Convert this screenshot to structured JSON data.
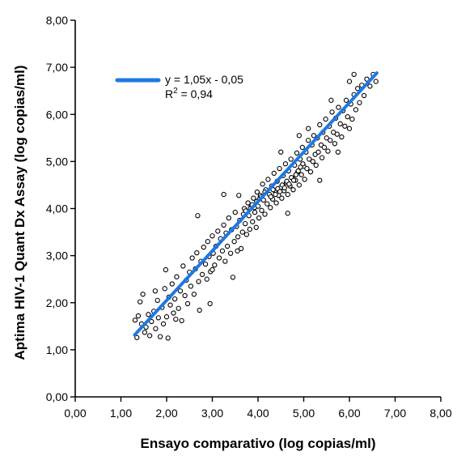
{
  "chart_data": {
    "type": "scatter",
    "xlabel": "Ensayo comparativo (log copias/ml)",
    "ylabel": "Aptima HIV-1 Quant Dx Assay (log copias/ml)",
    "xlim": [
      0,
      8
    ],
    "ylim": [
      0,
      8
    ],
    "x_tick_labels": [
      "0,00",
      "1,00",
      "2,00",
      "3,00",
      "4,00",
      "5,00",
      "6,00",
      "7,00",
      "8,00"
    ],
    "y_tick_labels": [
      "0,00",
      "1,00",
      "2,00",
      "3,00",
      "4,00",
      "5,00",
      "6,00",
      "7,00",
      "8,00"
    ],
    "grid": false,
    "legend_position": "top-left",
    "regression": {
      "equation": "y = 1,05x - 0,05",
      "r2_prefix": "R",
      "r2_sup": "2",
      "r2_suffix": " = 0,94",
      "slope": 1.05,
      "intercept": -0.05,
      "x_range": [
        1.3,
        6.6
      ],
      "color": "#1f78e0"
    },
    "point_color": "#000000",
    "points": [
      [
        1.31,
        1.63
      ],
      [
        1.35,
        1.26
      ],
      [
        1.38,
        1.72
      ],
      [
        1.42,
        2.02
      ],
      [
        1.45,
        1.55
      ],
      [
        1.48,
        2.18
      ],
      [
        1.52,
        1.37
      ],
      [
        1.55,
        1.48
      ],
      [
        1.6,
        1.75
      ],
      [
        1.63,
        1.3
      ],
      [
        1.67,
        1.6
      ],
      [
        1.72,
        1.82
      ],
      [
        1.76,
        1.45
      ],
      [
        1.8,
        2.05
      ],
      [
        1.82,
        1.68
      ],
      [
        1.86,
        1.28
      ],
      [
        1.9,
        1.9
      ],
      [
        1.93,
        1.55
      ],
      [
        1.96,
        2.3
      ],
      [
        2.0,
        1.7
      ],
      [
        2.03,
        1.25
      ],
      [
        2.05,
        2.12
      ],
      [
        2.08,
        1.95
      ],
      [
        2.12,
        2.4
      ],
      [
        2.15,
        1.78
      ],
      [
        2.18,
        2.08
      ],
      [
        2.22,
        2.55
      ],
      [
        2.26,
        1.88
      ],
      [
        2.3,
        2.25
      ],
      [
        2.33,
        1.62
      ],
      [
        2.36,
        2.78
      ],
      [
        2.4,
        2.15
      ],
      [
        2.43,
        2.48
      ],
      [
        2.46,
        1.98
      ],
      [
        2.5,
        2.65
      ],
      [
        2.53,
        2.35
      ],
      [
        2.56,
        2.95
      ],
      [
        2.6,
        2.18
      ],
      [
        2.63,
        2.72
      ],
      [
        2.66,
        3.06
      ],
      [
        2.7,
        2.45
      ],
      [
        2.72,
        1.84
      ],
      [
        2.75,
        2.88
      ],
      [
        2.78,
        2.6
      ],
      [
        2.81,
        3.18
      ],
      [
        2.85,
        2.82
      ],
      [
        2.88,
        2.5
      ],
      [
        2.9,
        3.3
      ],
      [
        2.93,
        2.98
      ],
      [
        2.96,
        2.66
      ],
      [
        3.0,
        3.42
      ],
      [
        3.02,
        3.05
      ],
      [
        3.05,
        2.8
      ],
      [
        3.08,
        3.2
      ],
      [
        3.12,
        3.52
      ],
      [
        3.15,
        2.95
      ],
      [
        3.18,
        3.36
      ],
      [
        3.22,
        3.1
      ],
      [
        3.25,
        3.65
      ],
      [
        3.28,
        2.88
      ],
      [
        3.3,
        3.48
      ],
      [
        3.33,
        3.2
      ],
      [
        3.36,
        3.8
      ],
      [
        3.4,
        3.05
      ],
      [
        3.42,
        3.55
      ],
      [
        3.45,
        2.54
      ],
      [
        3.48,
        3.3
      ],
      [
        3.5,
        3.92
      ],
      [
        3.53,
        3.62
      ],
      [
        3.56,
        3.4
      ],
      [
        3.58,
        4.28
      ],
      [
        3.6,
        3.75
      ],
      [
        3.63,
        3.15
      ],
      [
        3.66,
        3.5
      ],
      [
        3.7,
        4.0
      ],
      [
        3.72,
        3.68
      ],
      [
        3.75,
        3.45
      ],
      [
        3.78,
        4.12
      ],
      [
        3.8,
        3.85
      ],
      [
        3.82,
        3.56
      ],
      [
        3.85,
        4.05
      ],
      [
        3.88,
        3.72
      ],
      [
        3.9,
        4.22
      ],
      [
        3.93,
        3.92
      ],
      [
        3.96,
        3.6
      ],
      [
        3.98,
        4.35
      ],
      [
        4.0,
        4.05
      ],
      [
        4.02,
        3.8
      ],
      [
        4.05,
        4.28
      ],
      [
        4.08,
        3.96
      ],
      [
        4.1,
        4.52
      ],
      [
        4.12,
        4.18
      ],
      [
        4.15,
        3.88
      ],
      [
        4.17,
        4.4
      ],
      [
        4.2,
        4.1
      ],
      [
        4.22,
        4.62
      ],
      [
        4.25,
        4.3
      ],
      [
        4.27,
        4.02
      ],
      [
        4.3,
        4.48
      ],
      [
        4.32,
        4.2
      ],
      [
        4.35,
        4.75
      ],
      [
        4.37,
        4.38
      ],
      [
        4.4,
        4.12
      ],
      [
        4.42,
        4.58
      ],
      [
        4.45,
        4.28
      ],
      [
        4.47,
        4.85
      ],
      [
        4.5,
        4.45
      ],
      [
        4.52,
        4.22
      ],
      [
        4.55,
        4.7
      ],
      [
        4.57,
        4.38
      ],
      [
        4.6,
        4.95
      ],
      [
        4.62,
        4.55
      ],
      [
        4.65,
        4.3
      ],
      [
        4.67,
        4.8
      ],
      [
        4.7,
        4.48
      ],
      [
        4.72,
        5.05
      ],
      [
        4.75,
        4.65
      ],
      [
        4.77,
        4.4
      ],
      [
        4.8,
        4.92
      ],
      [
        4.82,
        4.6
      ],
      [
        4.85,
        5.18
      ],
      [
        4.87,
        4.78
      ],
      [
        4.9,
        4.5
      ],
      [
        4.92,
        5.05
      ],
      [
        4.95,
        4.72
      ],
      [
        4.97,
        5.3
      ],
      [
        5.0,
        4.9
      ],
      [
        5.02,
        4.62
      ],
      [
        5.05,
        5.2
      ],
      [
        5.07,
        4.85
      ],
      [
        5.1,
        5.45
      ],
      [
        5.12,
        5.05
      ],
      [
        5.15,
        4.78
      ],
      [
        5.18,
        5.35
      ],
      [
        5.2,
        5.0
      ],
      [
        5.22,
        5.55
      ],
      [
        5.25,
        5.15
      ],
      [
        5.27,
        4.92
      ],
      [
        5.3,
        5.5
      ],
      [
        5.32,
        5.2
      ],
      [
        5.35,
        5.78
      ],
      [
        5.38,
        5.35
      ],
      [
        5.4,
        5.08
      ],
      [
        5.42,
        5.62
      ],
      [
        5.45,
        5.3
      ],
      [
        5.48,
        5.9
      ],
      [
        5.5,
        5.5
      ],
      [
        5.53,
        5.22
      ],
      [
        5.56,
        5.75
      ],
      [
        5.58,
        5.45
      ],
      [
        5.62,
        6.05
      ],
      [
        5.65,
        5.62
      ],
      [
        5.68,
        5.38
      ],
      [
        5.7,
        5.92
      ],
      [
        5.73,
        5.58
      ],
      [
        5.76,
        6.15
      ],
      [
        5.8,
        5.8
      ],
      [
        5.83,
        5.52
      ],
      [
        5.86,
        6.08
      ],
      [
        5.9,
        5.75
      ],
      [
        5.93,
        6.3
      ],
      [
        5.96,
        5.95
      ],
      [
        6.0,
        5.7
      ],
      [
        6.03,
        6.22
      ],
      [
        6.06,
        5.9
      ],
      [
        6.1,
        6.42
      ],
      [
        6.14,
        6.1
      ],
      [
        6.18,
        6.55
      ],
      [
        6.22,
        6.25
      ],
      [
        6.27,
        6.62
      ],
      [
        6.32,
        6.4
      ],
      [
        6.38,
        6.75
      ],
      [
        6.45,
        6.6
      ],
      [
        6.52,
        6.85
      ],
      [
        6.58,
        6.7
      ],
      [
        6.1,
        6.85
      ],
      [
        4.15,
        4.35
      ],
      [
        4.28,
        4.25
      ],
      [
        4.33,
        4.4
      ],
      [
        4.38,
        4.3
      ],
      [
        4.43,
        4.42
      ],
      [
        4.48,
        4.36
      ],
      [
        4.53,
        4.5
      ],
      [
        4.58,
        4.44
      ],
      [
        4.63,
        4.58
      ],
      [
        4.68,
        4.52
      ],
      [
        4.73,
        4.66
      ],
      [
        4.78,
        4.6
      ],
      [
        4.83,
        4.72
      ],
      [
        4.88,
        4.8
      ],
      [
        4.93,
        4.88
      ],
      [
        4.98,
        4.95
      ],
      [
        3.68,
        3.88
      ],
      [
        3.73,
        3.95
      ],
      [
        3.83,
        4.0
      ],
      [
        3.87,
        4.08
      ],
      [
        3.92,
        4.02
      ],
      [
        3.97,
        4.15
      ],
      [
        4.03,
        4.2
      ],
      [
        4.07,
        4.25
      ],
      [
        2.68,
        3.85
      ],
      [
        2.95,
        1.98
      ],
      [
        3.55,
        3.1
      ],
      [
        4.65,
        3.9
      ],
      [
        5.35,
        4.6
      ],
      [
        5.6,
        6.3
      ],
      [
        6.0,
        6.7
      ],
      [
        1.98,
        2.7
      ],
      [
        3.25,
        4.3
      ],
      [
        4.9,
        5.55
      ],
      [
        5.1,
        5.7
      ],
      [
        2.2,
        1.65
      ],
      [
        1.75,
        2.25
      ],
      [
        3.0,
        2.7
      ],
      [
        4.5,
        5.2
      ],
      [
        5.75,
        5.2
      ]
    ]
  }
}
